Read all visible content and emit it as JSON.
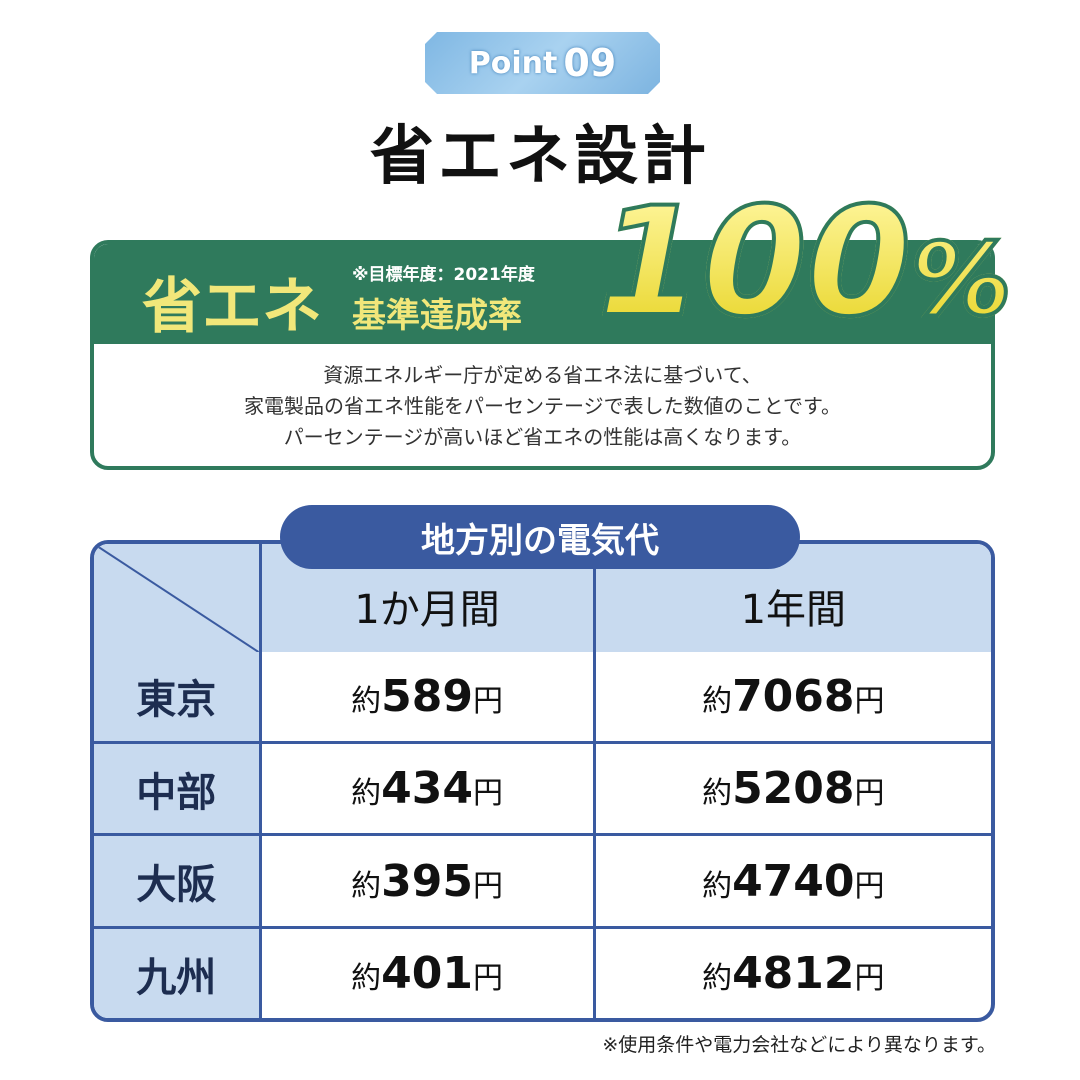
{
  "badge": {
    "label": "Point",
    "number": "09"
  },
  "title": "省エネ設計",
  "energy": {
    "label": "省エネ",
    "note": "※目標年度：2021年度",
    "rate_label": "基準達成率",
    "value": "100",
    "unit": "%",
    "description": [
      "資源エネルギー庁が定める省エネ法に基づいて、",
      "家電製品の省エネ性能をパーセンテージで表した数値のことです。",
      "パーセンテージが高いほど省エネの性能は高くなります。"
    ]
  },
  "table": {
    "title": "地方別の電気代",
    "headers": [
      "1か月間",
      "1年間"
    ],
    "prefix": "約",
    "suffix": "円",
    "rows": [
      {
        "region": "東京",
        "month": "589",
        "year": "7068"
      },
      {
        "region": "中部",
        "month": "434",
        "year": "5208"
      },
      {
        "region": "大阪",
        "month": "395",
        "year": "4740"
      },
      {
        "region": "九州",
        "month": "401",
        "year": "4812"
      }
    ]
  },
  "footnote": "※使用条件や電力会社などにより異なります。",
  "colors": {
    "green": "#2f7a5c",
    "yellow": "#f1e77a",
    "blue": "#3a5aa0",
    "light_blue": "#c8daef"
  }
}
